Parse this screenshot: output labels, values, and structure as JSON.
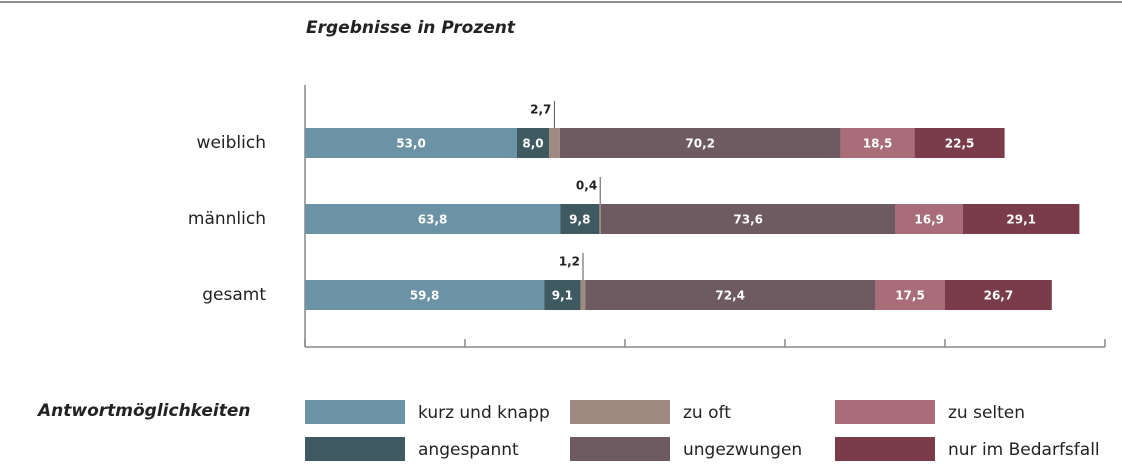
{
  "chart_data": {
    "type": "stacked_bar_horizontal",
    "title": "Ergebnisse in Prozent",
    "legend_title": "Antwortmöglichkeiten",
    "categories": [
      "weiblich",
      "männlich",
      "gesamt"
    ],
    "xlim": [
      0,
      200
    ],
    "xticks": [
      0,
      40,
      80,
      120,
      160,
      200
    ],
    "series": [
      {
        "name": "kurz und knapp",
        "color": "#6b93a5",
        "values": [
          53.0,
          63.8,
          59.8
        ],
        "value_labels": [
          "53,0",
          "63,8",
          "59,8"
        ]
      },
      {
        "name": "angespannt",
        "color": "#3e5960",
        "values": [
          8.0,
          9.8,
          9.1
        ],
        "value_labels": [
          "8,0",
          "9,8",
          "9,1"
        ]
      },
      {
        "name": "zu oft",
        "color": "#9e8a80",
        "values": [
          2.7,
          0.4,
          1.2
        ],
        "value_labels": [
          "2,7",
          "0,4",
          "1,2"
        ]
      },
      {
        "name": "ungezwungen",
        "color": "#6e5b62",
        "values": [
          70.2,
          73.6,
          72.4
        ],
        "value_labels": [
          "70,2",
          "73,6",
          "72,4"
        ]
      },
      {
        "name": "zu selten",
        "color": "#a86d79",
        "values": [
          18.5,
          16.9,
          17.5
        ],
        "value_labels": [
          "18,5",
          "16,9",
          "17,5"
        ]
      },
      {
        "name": "nur im Bedarfsfall",
        "color": "#7a3b4b",
        "values": [
          22.5,
          29.1,
          26.7
        ],
        "value_labels": [
          "22,5",
          "29,1",
          "26,7"
        ]
      }
    ]
  }
}
